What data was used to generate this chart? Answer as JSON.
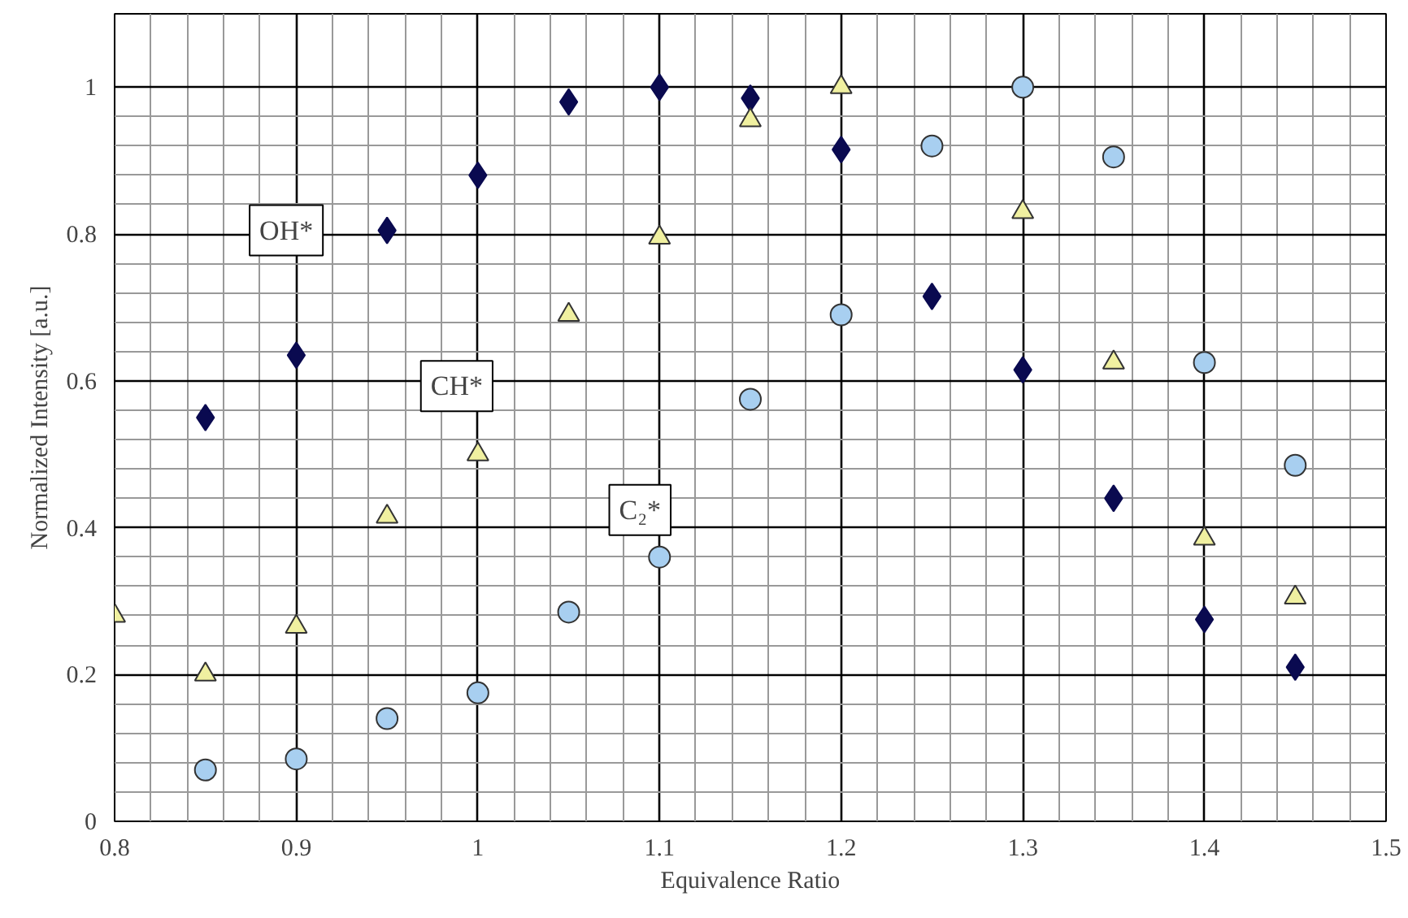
{
  "chart_data": {
    "type": "scatter",
    "xlabel": "Equivalence Ratio",
    "ylabel": "Normalized Intensity [a.u.]",
    "xlim": [
      0.8,
      1.5
    ],
    "xticks": [
      0.8,
      0.9,
      1,
      1.1,
      1.2,
      1.3,
      1.4,
      1.5
    ],
    "ylim": [
      0,
      1.1
    ],
    "yticks": [
      0,
      0.2,
      0.4,
      0.6,
      0.8,
      1
    ],
    "grid": true,
    "legend": false,
    "series": [
      {
        "name": "OH*",
        "color": "#0a0a50",
        "marker": "diamond",
        "x": [
          0.85,
          0.9,
          0.95,
          1.0,
          1.05,
          1.1,
          1.15,
          1.2,
          1.25,
          1.3,
          1.35,
          1.4,
          1.45
        ],
        "values": [
          0.55,
          0.635,
          0.805,
          0.88,
          0.98,
          1.0,
          0.985,
          0.915,
          0.715,
          0.615,
          0.44,
          0.275,
          0.21
        ]
      },
      {
        "name": "CH*",
        "color": "#f0f0a0",
        "marker": "triangle",
        "x": [
          0.8,
          0.85,
          0.9,
          0.95,
          1.0,
          1.05,
          1.1,
          1.15,
          1.2,
          1.3,
          1.35,
          1.4,
          1.45
        ],
        "values": [
          0.28,
          0.2,
          0.265,
          0.415,
          0.5,
          0.69,
          0.795,
          0.955,
          1.0,
          0.83,
          0.625,
          0.385,
          0.305
        ]
      },
      {
        "name": "C₂*",
        "color": "#a8cff0",
        "marker": "circle",
        "x": [
          0.85,
          0.9,
          0.95,
          1.0,
          1.05,
          1.1,
          1.15,
          1.2,
          1.25,
          1.3,
          1.35,
          1.4,
          1.45
        ],
        "values": [
          0.07,
          0.085,
          0.14,
          0.175,
          0.285,
          0.36,
          0.575,
          0.69,
          0.92,
          1.0,
          0.905,
          0.625,
          0.485
        ]
      }
    ]
  }
}
